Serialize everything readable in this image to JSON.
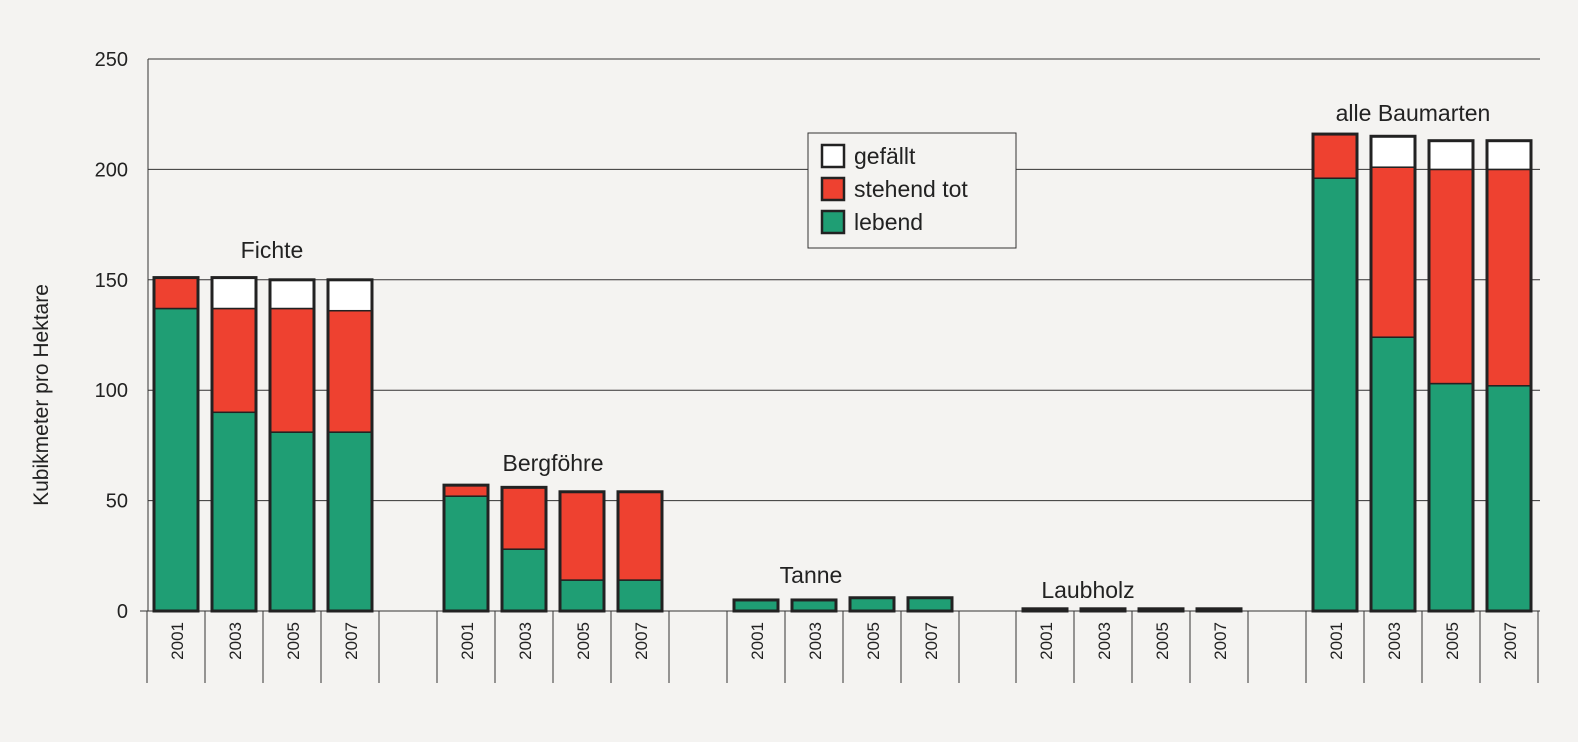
{
  "chart_data": {
    "type": "bar",
    "stacked": true,
    "ylabel": "Kubikmeter pro Hektare",
    "ylim": [
      0,
      250
    ],
    "yticks": [
      0,
      50,
      100,
      150,
      200,
      250
    ],
    "grid": true,
    "legend_position": "top-center",
    "groups": [
      "Fichte",
      "Bergföhre",
      "Tanne",
      "Laubholz",
      "alle Baumarten"
    ],
    "categories": [
      "2001",
      "2003",
      "2005",
      "2007"
    ],
    "series": [
      {
        "name": "lebend",
        "color": "#1f9e74",
        "values": [
          [
            137,
            90,
            81,
            81
          ],
          [
            52,
            28,
            14,
            14
          ],
          [
            5,
            5,
            6,
            6
          ],
          [
            1,
            1,
            1,
            1
          ],
          [
            196,
            124,
            103,
            102
          ]
        ]
      },
      {
        "name": "stehend tot",
        "color": "#ee4130",
        "values": [
          [
            14,
            47,
            56,
            55
          ],
          [
            5,
            28,
            40,
            40
          ],
          [
            0,
            0,
            0,
            0
          ],
          [
            0,
            0,
            0,
            0
          ],
          [
            20,
            77,
            97,
            98
          ]
        ]
      },
      {
        "name": "gefällt",
        "color": "#ffffff",
        "values": [
          [
            0,
            14,
            13,
            14
          ],
          [
            0,
            0,
            0,
            0
          ],
          [
            0,
            0,
            0,
            0
          ],
          [
            0,
            0,
            0,
            0
          ],
          [
            0,
            14,
            13,
            13
          ]
        ]
      }
    ]
  }
}
